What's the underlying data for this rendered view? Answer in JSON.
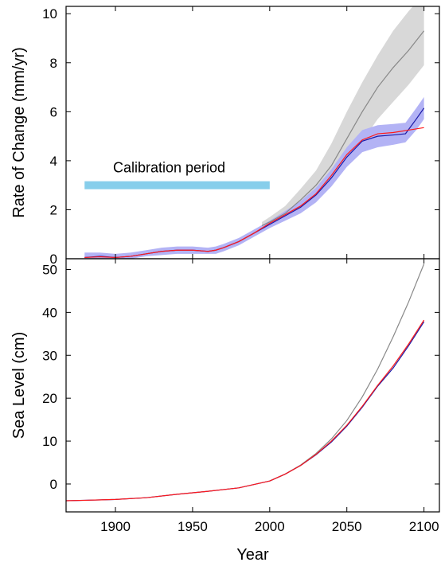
{
  "chart_data": [
    {
      "type": "line",
      "panel": "top",
      "xlabel": "",
      "ylabel": "Rate of Change (mm/yr)",
      "xlim": [
        1868,
        2110
      ],
      "ylim": [
        0,
        10.3
      ],
      "yticks": [
        0,
        2,
        4,
        6,
        8,
        10
      ],
      "ytick_labels": [
        "0",
        "2",
        "4",
        "6",
        "8",
        "10"
      ],
      "grid": false,
      "legend": "none",
      "annotation": {
        "text": "Calibration period",
        "bar_start": 1880,
        "bar_end": 2000,
        "bar_value": 3.0,
        "color": "#87ceeb"
      },
      "series": [
        {
          "color": "#888888",
          "band_color": "#d8d8d8",
          "x": [
            1995,
            2000,
            2010,
            2020,
            2030,
            2040,
            2050,
            2060,
            2070,
            2080,
            2090,
            2100
          ],
          "values": [
            1.35,
            1.5,
            1.85,
            2.4,
            3.0,
            3.8,
            4.9,
            6.0,
            7.0,
            7.8,
            8.5,
            9.3
          ],
          "band_low": [
            1.2,
            1.3,
            1.55,
            1.95,
            2.4,
            3.0,
            3.9,
            4.8,
            5.7,
            6.4,
            7.1,
            7.9
          ],
          "band_high": [
            1.5,
            1.7,
            2.15,
            2.85,
            3.6,
            4.7,
            6.0,
            7.2,
            8.3,
            9.3,
            10.1,
            10.8
          ]
        },
        {
          "color": "#1a1aa8",
          "band_color": "#b3b3f5",
          "x": [
            1880,
            1890,
            1900,
            1910,
            1920,
            1930,
            1940,
            1950,
            1960,
            1965,
            1970,
            1980,
            1990,
            2000,
            2010,
            2020,
            2030,
            2040,
            2050,
            2060,
            2070,
            2080,
            2088,
            2095,
            2100
          ],
          "values": [
            0.05,
            0.1,
            0.05,
            0.1,
            0.2,
            0.3,
            0.35,
            0.35,
            0.3,
            0.35,
            0.45,
            0.7,
            1.05,
            1.4,
            1.75,
            2.1,
            2.6,
            3.3,
            4.15,
            4.8,
            5.0,
            5.05,
            5.1,
            5.7,
            6.15
          ],
          "band_low": [
            0.0,
            0.0,
            0.0,
            0.0,
            0.1,
            0.15,
            0.2,
            0.2,
            0.2,
            0.2,
            0.3,
            0.55,
            0.9,
            1.25,
            1.55,
            1.85,
            2.3,
            2.95,
            3.75,
            4.35,
            4.55,
            4.65,
            4.75,
            5.25,
            5.7
          ],
          "band_high": [
            0.25,
            0.25,
            0.2,
            0.25,
            0.35,
            0.45,
            0.5,
            0.5,
            0.45,
            0.5,
            0.6,
            0.85,
            1.2,
            1.55,
            1.95,
            2.35,
            2.9,
            3.65,
            4.55,
            5.25,
            5.45,
            5.5,
            5.55,
            6.15,
            6.6
          ]
        },
        {
          "color": "#ff1a1a",
          "x": [
            1880,
            1890,
            1900,
            1910,
            1920,
            1930,
            1940,
            1950,
            1960,
            1965,
            1970,
            1980,
            1990,
            2000,
            2010,
            2020,
            2030,
            2040,
            2050,
            2060,
            2070,
            2080,
            2090,
            2100
          ],
          "values": [
            0.05,
            0.08,
            0.05,
            0.1,
            0.2,
            0.3,
            0.35,
            0.35,
            0.3,
            0.35,
            0.45,
            0.7,
            1.05,
            1.45,
            1.8,
            2.15,
            2.65,
            3.4,
            4.25,
            4.85,
            5.1,
            5.15,
            5.25,
            5.35
          ]
        }
      ]
    },
    {
      "type": "line",
      "panel": "bottom",
      "xlabel": "Year",
      "ylabel": "Sea Level (cm)",
      "xlim": [
        1868,
        2110
      ],
      "ylim": [
        -6.5,
        52.5
      ],
      "yticks": [
        0,
        10,
        20,
        30,
        40,
        50
      ],
      "ytick_labels": [
        "0",
        "10",
        "20",
        "30",
        "40",
        "50"
      ],
      "xticks": [
        1900,
        1950,
        2000,
        2050,
        2100
      ],
      "xtick_labels": [
        "1900",
        "1950",
        "2000",
        "2050",
        "2100"
      ],
      "grid": false,
      "legend": "none",
      "series": [
        {
          "color": "#888888",
          "x": [
            2000,
            2010,
            2020,
            2030,
            2040,
            2050,
            2060,
            2070,
            2080,
            2090,
            2100
          ],
          "values": [
            0.7,
            2.3,
            4.4,
            7.1,
            10.5,
            14.8,
            20.3,
            26.8,
            34.3,
            42.4,
            51.3
          ]
        },
        {
          "color": "#1a1aa8",
          "x": [
            1868,
            1880,
            1900,
            1920,
            1940,
            1960,
            1980,
            2000,
            2010,
            2020,
            2030,
            2040,
            2050,
            2060,
            2070,
            2080,
            2090,
            2100
          ],
          "values": [
            -3.9,
            -3.8,
            -3.6,
            -3.2,
            -2.4,
            -1.7,
            -0.9,
            0.7,
            2.3,
            4.3,
            6.8,
            9.8,
            13.5,
            17.9,
            22.8,
            27.0,
            32.2,
            37.8
          ]
        },
        {
          "color": "#ff1a1a",
          "x": [
            1868,
            1880,
            1900,
            1920,
            1940,
            1960,
            1980,
            2000,
            2010,
            2020,
            2030,
            2040,
            2050,
            2060,
            2070,
            2080,
            2090,
            2100
          ],
          "values": [
            -3.9,
            -3.8,
            -3.6,
            -3.2,
            -2.4,
            -1.7,
            -0.9,
            0.7,
            2.3,
            4.3,
            6.9,
            10.0,
            13.7,
            18.1,
            23.0,
            27.5,
            32.6,
            38.2
          ]
        }
      ]
    }
  ]
}
